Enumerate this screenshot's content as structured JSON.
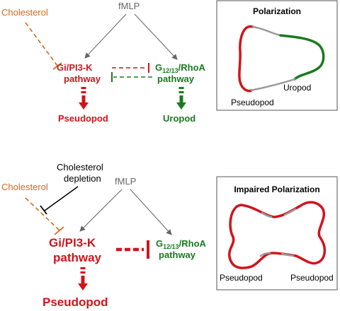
{
  "colors": {
    "red": "#d0141c",
    "green": "#1a7a1f",
    "orange": "#d2691e",
    "gray": "#666666",
    "black": "#000000",
    "membrane_gray": "#9a9a9a"
  },
  "top": {
    "cholesterol": "Cholesterol",
    "fmlp": "fMLP",
    "gi_pathway": {
      "line1": "Gi/PI3-K",
      "line2": "pathway"
    },
    "g1213_pathway": {
      "g": "G",
      "sub": "12/13",
      "rest": "/RhoA",
      "line2": "pathway"
    },
    "pseudopod": "Pseudopod",
    "uropod": "Uropod"
  },
  "polarization_box": {
    "title": "Polarization",
    "uropod_label": "Uropod",
    "pseudopod_label": "Pseudopod"
  },
  "bottom": {
    "cholesterol": "Cholesterol",
    "depletion": {
      "line1": "Cholesterol",
      "line2": "depletion"
    },
    "fmlp": "fMLP",
    "gi_pathway": {
      "line1": "Gi/PI3-K",
      "line2": "pathway"
    },
    "g1213_pathway": {
      "g": "G",
      "sub": "12/13",
      "rest": "/RhoA",
      "line2": "pathway"
    },
    "pseudopod": "Pseudopod"
  },
  "impaired_box": {
    "title": "Impaired Polarization",
    "pseudopod_left": "Pseudopod",
    "pseudopod_right": "Pseudopod"
  }
}
